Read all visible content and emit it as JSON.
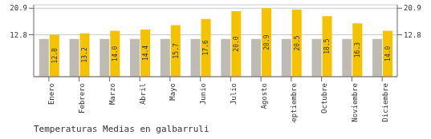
{
  "chart_data": {
    "type": "bar",
    "title": "Temperaturas Medias en galbarruli",
    "categories": [
      "Enero",
      "Febrero",
      "Marzo",
      "Abril",
      "Mayo",
      "Junio",
      "Julio",
      "Agosto",
      "Septiembre",
      "Octubre",
      "Noviembre",
      "Diciembre"
    ],
    "series": [
      {
        "color": "#BEBBB4",
        "values": [
          11.5,
          11.5,
          11.5,
          11.5,
          11.5,
          11.5,
          11.5,
          11.5,
          11.5,
          11.5,
          11.5,
          11.5
        ]
      },
      {
        "color": "#F5C200",
        "values": [
          12.8,
          13.2,
          14.0,
          14.4,
          15.7,
          17.6,
          20.0,
          20.9,
          20.5,
          18.5,
          16.3,
          14.0
        ],
        "data_labels": true,
        "value_labels": [
          "12.8",
          "13.2",
          "14.0",
          "14.4",
          "15.7",
          "17.6",
          "20.0",
          "20.9",
          "20.5",
          "18.5",
          "16.3",
          "14.0"
        ]
      }
    ],
    "ylim": [
      0,
      21.945
    ],
    "yticks": [
      12.8,
      20.9
    ],
    "y2lim": [
      0,
      21.945
    ],
    "y2ticks": [
      12.8,
      20.9
    ],
    "grid": true
  }
}
